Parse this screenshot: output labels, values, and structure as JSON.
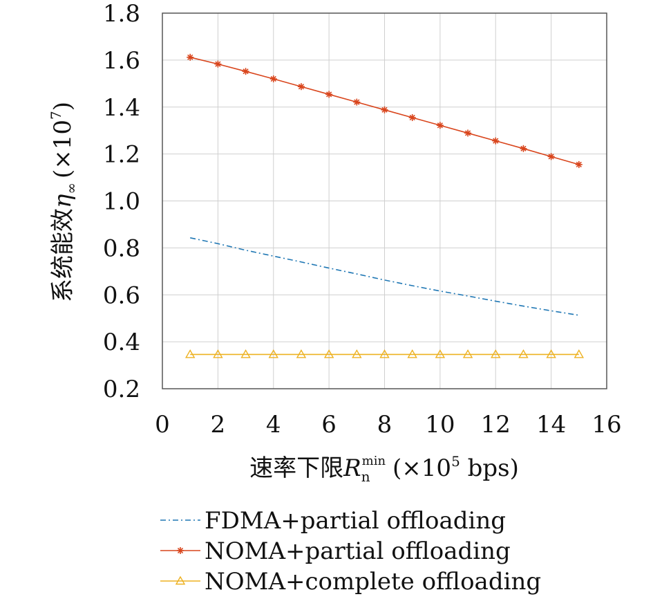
{
  "chart_data": {
    "type": "line",
    "xlabel": {
      "prefix": "速率下限",
      "symbol": "R",
      "subscript": "n",
      "superscript": "min",
      "unit_open": "(×10",
      "unit_exp": "5",
      "unit_close": " bps)"
    },
    "ylabel": {
      "prefix": "系统能效",
      "symbol": "η",
      "subscript": "∞",
      "unit_open": "(×10",
      "unit_exp": "7",
      "unit_close": ")"
    },
    "xlim": [
      0,
      16
    ],
    "ylim": [
      0.2,
      1.8
    ],
    "xticks": [
      0,
      2,
      4,
      6,
      8,
      10,
      12,
      14,
      16
    ],
    "xtick_labels": [
      "0",
      "2",
      "4",
      "6",
      "8",
      "10",
      "12",
      "14",
      "16"
    ],
    "yticks": [
      0.2,
      0.4,
      0.6,
      0.8,
      1.0,
      1.2,
      1.4,
      1.6,
      1.8
    ],
    "ytick_labels": [
      "0.2",
      "0.4",
      "0.6",
      "0.8",
      "1.0",
      "1.2",
      "1.4",
      "1.6",
      "1.8"
    ],
    "grid": true,
    "legend_position": "bottom",
    "x": [
      1,
      2,
      3,
      4,
      5,
      6,
      7,
      8,
      9,
      10,
      11,
      12,
      13,
      14,
      15
    ],
    "series": [
      {
        "name": "FDMA+partial offloading",
        "color": "#1f77b4",
        "line_style": "dash-dot",
        "marker": "none",
        "values": [
          0.843,
          0.818,
          0.79,
          0.765,
          0.74,
          0.714,
          0.689,
          0.663,
          0.639,
          0.616,
          0.595,
          0.573,
          0.552,
          0.532,
          0.513
        ]
      },
      {
        "name": "NOMA+partial offloading",
        "color": "#d9451c",
        "line_style": "solid",
        "marker": "asterisk",
        "values": [
          1.612,
          1.583,
          1.552,
          1.52,
          1.487,
          1.454,
          1.421,
          1.388,
          1.355,
          1.322,
          1.289,
          1.256,
          1.223,
          1.189,
          1.155
        ]
      },
      {
        "name": "NOMA+complete offloading",
        "color": "#edb120",
        "line_style": "solid",
        "marker": "triangle",
        "values": [
          0.346,
          0.346,
          0.346,
          0.346,
          0.346,
          0.346,
          0.346,
          0.346,
          0.346,
          0.346,
          0.346,
          0.346,
          0.346,
          0.346,
          0.346
        ]
      }
    ]
  }
}
